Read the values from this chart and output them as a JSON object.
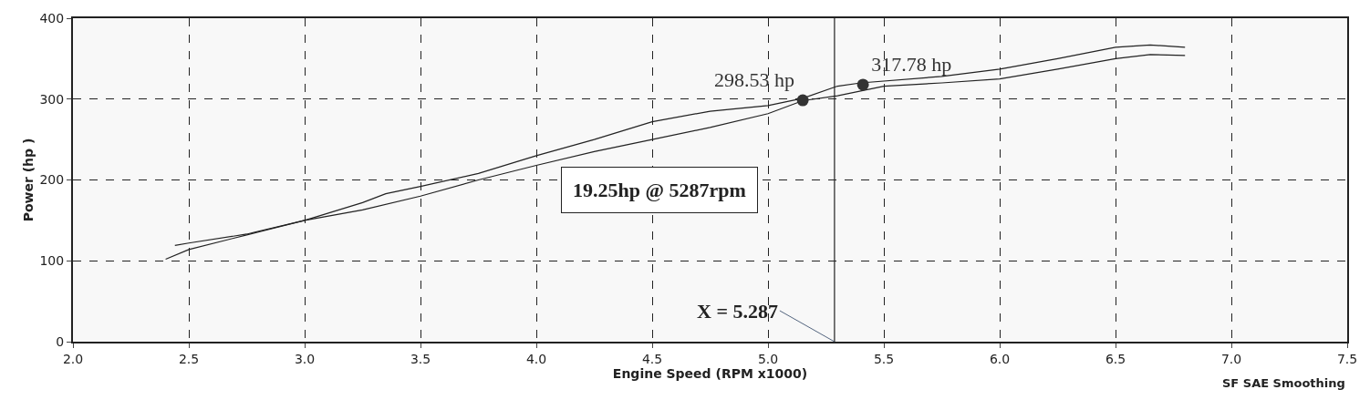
{
  "chart_data": {
    "type": "line",
    "xlabel": "Engine Speed (RPM x1000)",
    "ylabel": "Power (hp )",
    "xlim": [
      2.0,
      7.5
    ],
    "ylim": [
      0,
      400
    ],
    "xticks": [
      {
        "value": 2.0,
        "label": "2.0"
      },
      2.5,
      {
        "value": 3.0,
        "label": "3.0"
      },
      3.5,
      {
        "value": 4.0,
        "label": "4.0"
      },
      4.5,
      {
        "value": 5.0,
        "label": "5.0"
      },
      5.5,
      {
        "value": 6.0,
        "label": "6.0"
      },
      6.5,
      {
        "value": 7.0,
        "label": "7.0"
      },
      7.5
    ],
    "yticks": [
      0,
      100,
      200,
      300,
      400
    ],
    "grid": true,
    "marker": "none",
    "line_style": "solid",
    "series": [
      {
        "color": "#222222",
        "x": [
          2.44,
          2.5,
          2.75,
          3.0,
          3.25,
          3.35,
          3.5,
          3.75,
          4.0,
          4.25,
          4.5,
          4.75,
          5.0,
          5.15,
          5.3,
          5.4,
          5.75,
          6.0,
          6.25,
          6.5,
          6.65,
          6.8
        ],
        "values": [
          119,
          122,
          133,
          150,
          172,
          183,
          192,
          208,
          230,
          250,
          272,
          285,
          292,
          301,
          316,
          320,
          328,
          337,
          350,
          364,
          367,
          364
        ]
      },
      {
        "color": "#222222",
        "x": [
          2.4,
          2.5,
          2.75,
          3.0,
          3.25,
          3.5,
          3.75,
          4.0,
          4.25,
          4.5,
          4.75,
          5.0,
          5.15,
          5.3,
          5.5,
          5.75,
          6.0,
          6.25,
          6.5,
          6.65,
          6.8
        ],
        "values": [
          102,
          114,
          132,
          150,
          163,
          180,
          200,
          218,
          235,
          250,
          265,
          282,
          298,
          304,
          316,
          320,
          325,
          337,
          350,
          355,
          354
        ]
      },
      {
        "type": "scatter",
        "marker": "circle",
        "color": "#333333",
        "x": [
          5.15,
          5.41
        ],
        "values": [
          298.53,
          317.78
        ],
        "value_labels": [
          "298.53 hp",
          "317.78 hp"
        ]
      }
    ],
    "ref_lines": [
      {
        "axis": "x",
        "value": 5.287,
        "label": "X = 5.287",
        "color": "#222222",
        "line_style": "solid"
      }
    ],
    "annotations": [
      "19.25hp @ 5287rpm",
      "SF SAE Smoothing"
    ]
  }
}
